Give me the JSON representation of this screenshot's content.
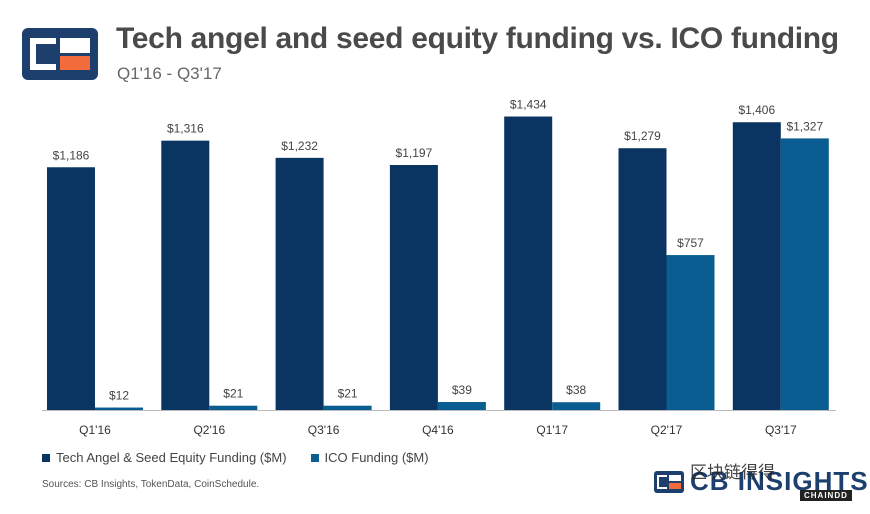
{
  "header": {
    "title": "Tech angel and seed equity funding vs. ICO funding",
    "subtitle": "Q1'16 - Q3'17"
  },
  "colors": {
    "series_1": "#0a3461",
    "series_2": "#0a5d91",
    "logo_blue": "#1d3f6e",
    "logo_orange": "#f26b3a"
  },
  "chart_data": {
    "type": "bar",
    "title": "Tech angel and seed equity funding vs. ICO funding",
    "subtitle": "Q1'16 - Q3'17",
    "xlabel": "",
    "ylabel": "",
    "unit": "$M",
    "ylim": [
      0,
      1500
    ],
    "grid": false,
    "legend_position": "bottom-left",
    "categories": [
      "Q1'16",
      "Q2'16",
      "Q3'16",
      "Q4'16",
      "Q1'17",
      "Q2'17",
      "Q3'17"
    ],
    "series": [
      {
        "name": "Tech Angel & Seed Equity Funding ($M)",
        "values": [
          1186,
          1316,
          1232,
          1197,
          1434,
          1279,
          1406
        ],
        "labels": [
          "$1,186",
          "$1,316",
          "$1,232",
          "$1,197",
          "$1,434",
          "$1,279",
          "$1,406"
        ]
      },
      {
        "name": "ICO Funding ($M)",
        "values": [
          12,
          21,
          21,
          39,
          38,
          757,
          1327
        ],
        "labels": [
          "$12",
          "$21",
          "$21",
          "$39",
          "$38",
          "$757",
          "$1,327"
        ]
      }
    ]
  },
  "legend": {
    "series_1_label": "Tech Angel & Seed Equity Funding ($M)",
    "series_2_label": "ICO Funding ($M)"
  },
  "footer": {
    "source": "Sources: CB Insights, TokenData, CoinSchedule.",
    "brand": "CB INSIGHTS",
    "watermark": "区块链得得",
    "watermark_sub": "CHAINDD"
  }
}
